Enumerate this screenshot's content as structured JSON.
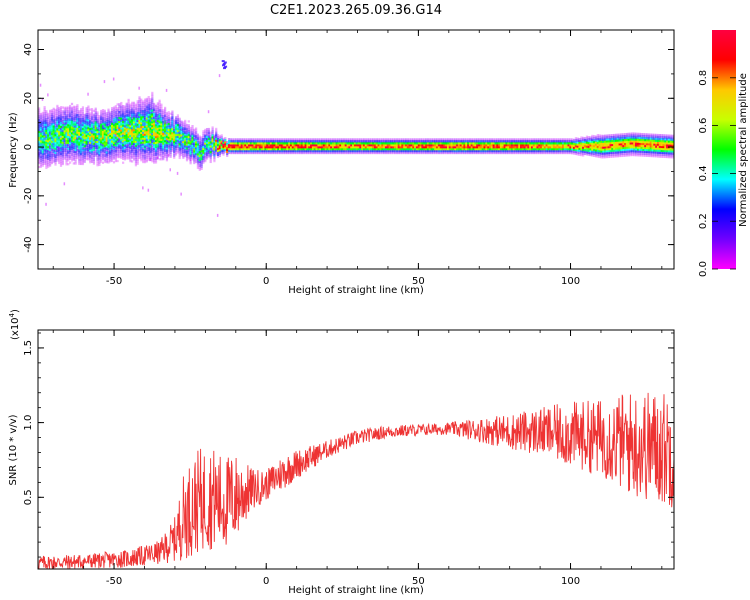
{
  "figure": {
    "title": "C2E1.2023.265.09.36.G14"
  },
  "chart_data": [
    {
      "type": "heatmap",
      "xlabel": "Height of straight line (km)",
      "ylabel": "Frequency (Hz)",
      "xlim": [
        -75,
        134
      ],
      "ylim": [
        -50,
        48
      ],
      "xticks": [
        -50,
        0,
        50,
        100
      ],
      "yticks": [
        -40,
        -20,
        0,
        20,
        40
      ],
      "colorbar": {
        "label": "Normalized spectral amplitude",
        "range": [
          0.0,
          1.0
        ],
        "ticks": [
          "0.0",
          "0.2",
          "0.4",
          "0.6",
          "0.8"
        ],
        "colormap": [
          "#ff00ff",
          "#7000ff",
          "#0000ff",
          "#00ffff",
          "#00ff00",
          "#c8ff00",
          "#ffc800",
          "#ff0000",
          "#ff0040"
        ]
      },
      "band": {
        "x": [
          -75,
          -65,
          -55,
          -45,
          -38,
          -32,
          -27,
          -22,
          -18,
          -14,
          0,
          20,
          40,
          60,
          80,
          100,
          110,
          120,
          134
        ],
        "center_hz": [
          3,
          5,
          4,
          6,
          7,
          5,
          3,
          -2,
          1,
          0,
          0,
          0,
          0,
          0,
          0,
          0,
          0,
          1,
          0
        ],
        "half_width_hz": [
          8,
          8,
          7,
          8,
          9,
          6,
          5,
          5,
          4,
          2,
          2,
          2,
          2,
          2,
          2,
          2,
          3,
          3,
          3
        ],
        "peak_amplitude": [
          0.45,
          0.5,
          0.55,
          0.55,
          0.6,
          0.55,
          0.5,
          0.45,
          0.5,
          0.95,
          0.9,
          0.85,
          0.8,
          0.9,
          0.85,
          0.75,
          0.8,
          0.8,
          0.85
        ]
      },
      "features": [
        {
          "x": -14,
          "y_hz": 34,
          "amplitude": 0.2
        }
      ]
    },
    {
      "type": "line",
      "xlabel": "Height of straight line (km)",
      "ylabel": "SNR (10 * v/v)",
      "y_exponent_label": "(x10",
      "y_exponent_power": "4",
      "y_exponent_close": ")",
      "xlim": [
        -75,
        134
      ],
      "ylim": [
        0.02,
        1.62
      ],
      "xticks": [
        -50,
        0,
        50,
        100
      ],
      "yticks": [
        0.5,
        1.0,
        1.5
      ],
      "ytick_labels": [
        "0.5",
        "1.0",
        "1.5"
      ],
      "series": [
        {
          "color": "#ee3333",
          "x": [
            -75,
            -60,
            -45,
            -35,
            -30,
            -27,
            -22,
            -18,
            -14,
            -10,
            -5,
            0,
            5,
            10,
            20,
            30,
            40,
            50,
            60,
            70,
            80,
            90,
            100,
            110,
            120,
            134
          ],
          "y": [
            0.06,
            0.07,
            0.09,
            0.13,
            0.22,
            0.38,
            0.48,
            0.5,
            0.46,
            0.5,
            0.55,
            0.58,
            0.66,
            0.72,
            0.82,
            0.9,
            0.94,
            0.95,
            0.96,
            0.95,
            0.94,
            0.94,
            0.92,
            0.9,
            0.86,
            0.82
          ],
          "amplitude": [
            0.05,
            0.05,
            0.06,
            0.08,
            0.15,
            0.3,
            0.35,
            0.35,
            0.32,
            0.3,
            0.15,
            0.1,
            0.12,
            0.1,
            0.06,
            0.05,
            0.04,
            0.04,
            0.04,
            0.08,
            0.12,
            0.16,
            0.22,
            0.26,
            0.36,
            0.4
          ]
        }
      ]
    }
  ]
}
